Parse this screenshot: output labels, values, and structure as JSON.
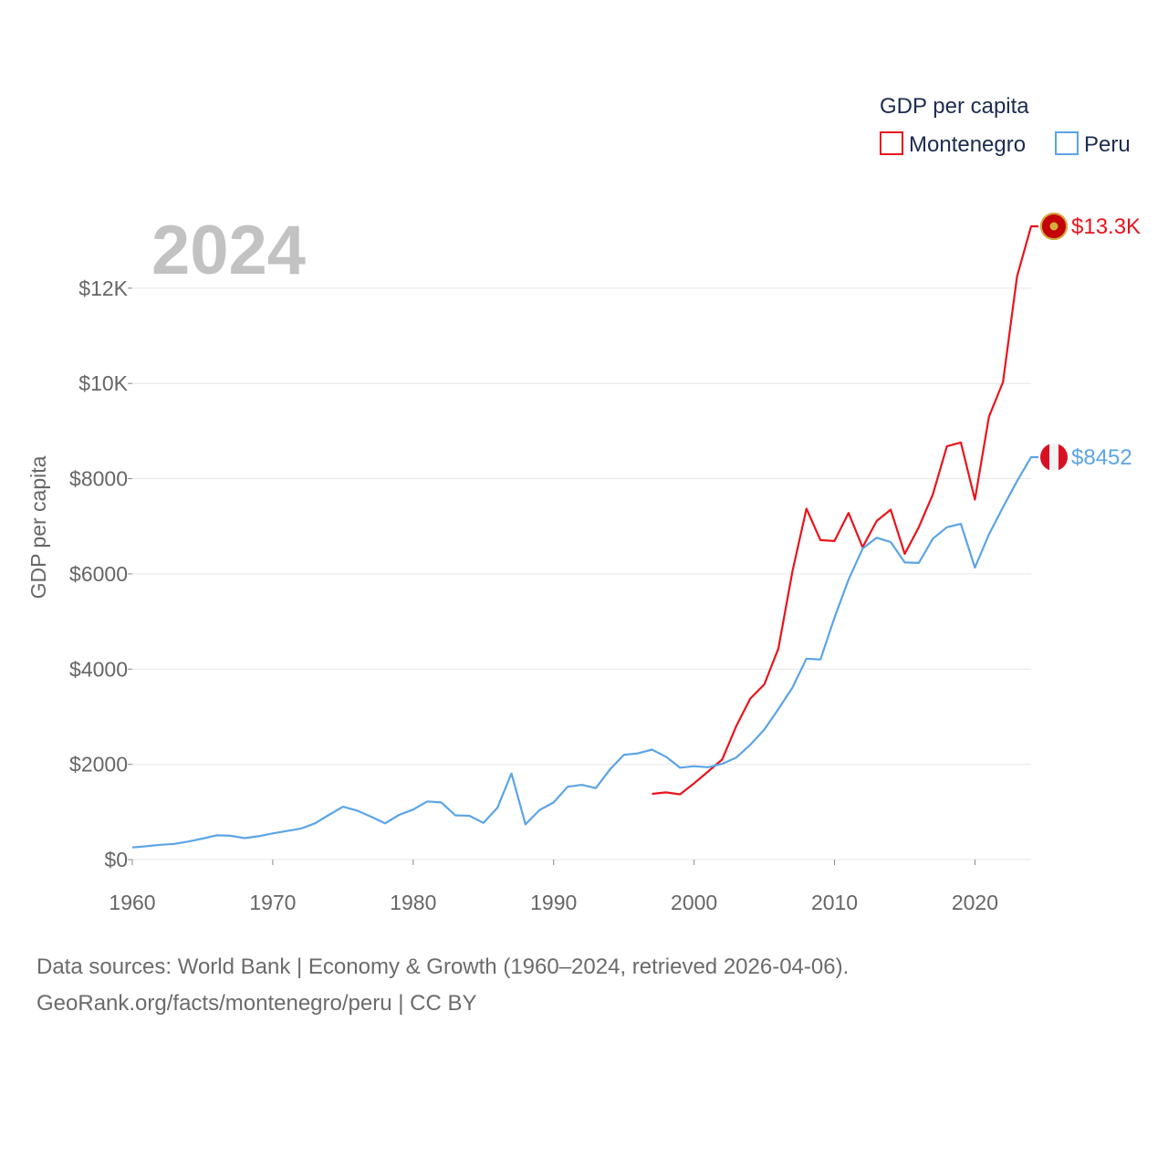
{
  "chart_data": {
    "type": "line",
    "legend_title": "GDP per capita",
    "ylabel": "GDP per capita",
    "year_label": "2024",
    "xlim": [
      1960,
      2024
    ],
    "ylim": [
      0,
      13300
    ],
    "x_ticks": [
      1960,
      1970,
      1980,
      1990,
      2000,
      2010,
      2020
    ],
    "x_tick_labels": [
      "1960",
      "1970",
      "1980",
      "1990",
      "2000",
      "2010",
      "2020"
    ],
    "y_ticks": [
      0,
      2000,
      4000,
      6000,
      8000,
      10000,
      12000
    ],
    "y_tick_labels": [
      "$0",
      "$2000",
      "$4000",
      "$6000",
      "$8000",
      "$10K",
      "$12K"
    ],
    "series": [
      {
        "name": "Montenegro",
        "color": "#e8141c",
        "end_label": "$13.3K",
        "flag": "montenegro",
        "x": [
          1997,
          1998,
          1999,
          2000,
          2001,
          2002,
          2003,
          2004,
          2005,
          2006,
          2007,
          2008,
          2009,
          2010,
          2011,
          2012,
          2013,
          2014,
          2015,
          2016,
          2017,
          2018,
          2019,
          2020,
          2021,
          2022,
          2023,
          2024
        ],
        "y": [
          1380,
          1410,
          1370,
          1600,
          1850,
          2100,
          2800,
          3380,
          3680,
          4430,
          6050,
          7370,
          6710,
          6690,
          7280,
          6560,
          7110,
          7350,
          6420,
          6980,
          7670,
          8680,
          8760,
          7560,
          9300,
          10030,
          12250,
          13300
        ]
      },
      {
        "name": "Peru",
        "color": "#5ba4e6",
        "end_label": "$8452",
        "flag": "peru",
        "x": [
          1960,
          1961,
          1962,
          1963,
          1964,
          1965,
          1966,
          1967,
          1968,
          1969,
          1970,
          1971,
          1972,
          1973,
          1974,
          1975,
          1976,
          1977,
          1978,
          1979,
          1980,
          1981,
          1982,
          1983,
          1984,
          1985,
          1986,
          1987,
          1988,
          1989,
          1990,
          1991,
          1992,
          1993,
          1994,
          1995,
          1996,
          1997,
          1998,
          1999,
          2000,
          2001,
          2002,
          2003,
          2004,
          2005,
          2006,
          2007,
          2008,
          2009,
          2010,
          2011,
          2012,
          2013,
          2014,
          2015,
          2016,
          2017,
          2018,
          2019,
          2020,
          2021,
          2022,
          2023,
          2024
        ],
        "y": [
          255,
          280,
          310,
          330,
          380,
          440,
          510,
          500,
          450,
          490,
          550,
          600,
          650,
          760,
          940,
          1110,
          1030,
          900,
          760,
          940,
          1050,
          1220,
          1200,
          930,
          920,
          770,
          1090,
          1810,
          740,
          1040,
          1200,
          1530,
          1570,
          1500,
          1890,
          2200,
          2230,
          2310,
          2160,
          1930,
          1960,
          1940,
          2010,
          2140,
          2410,
          2730,
          3160,
          3610,
          4220,
          4200,
          5080,
          5880,
          6530,
          6760,
          6670,
          6240,
          6230,
          6740,
          6980,
          7050,
          6130,
          6830,
          7400,
          7950,
          8452
        ]
      }
    ]
  },
  "footer": {
    "line1": "Data sources: World Bank | Economy & Growth (1960–2024, retrieved 2026-04-06).",
    "line2": "GeoRank.org/facts/montenegro/peru | CC BY"
  }
}
